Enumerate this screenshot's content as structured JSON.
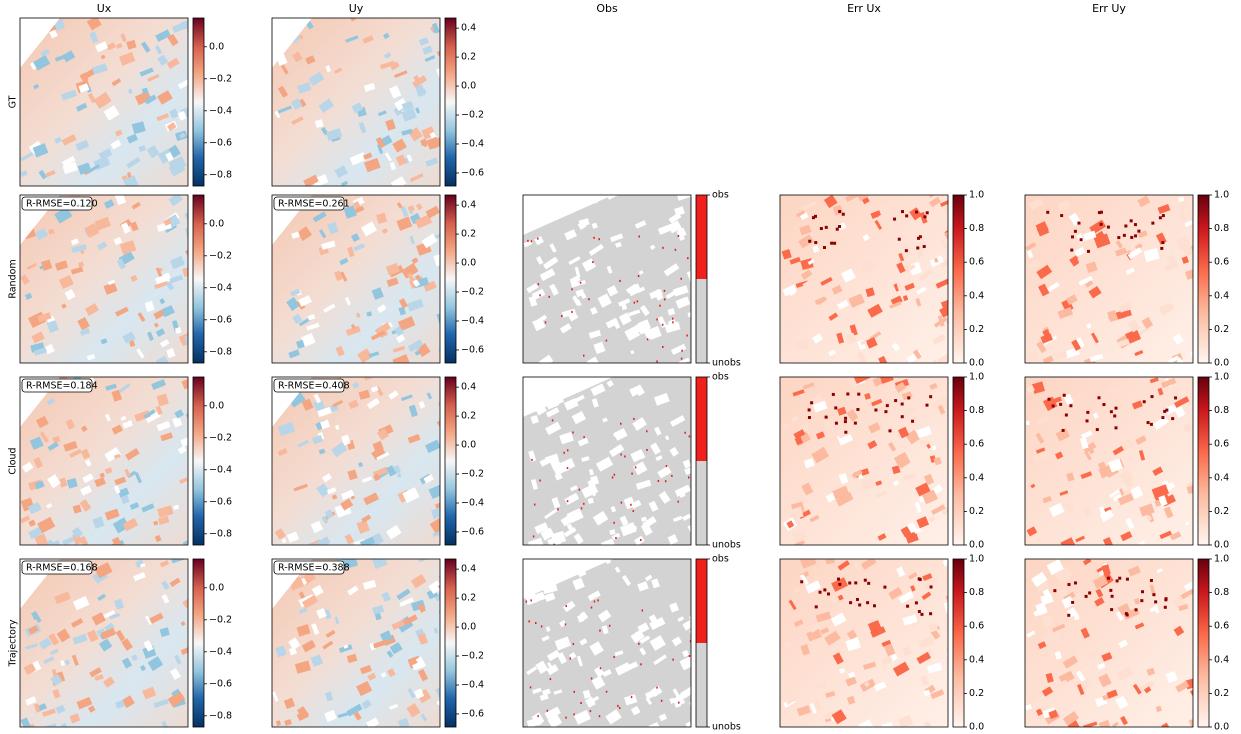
{
  "column_titles": [
    "Ux",
    "Uy",
    "Obs",
    "Err Ux",
    "Err Uy"
  ],
  "row_labels": [
    "GT",
    "Random",
    "Cloud",
    "Trajectory"
  ],
  "rmse": [
    [
      "R-RMSE=0.120",
      "R-RMSE=0.261"
    ],
    [
      "R-RMSE=0.184",
      "R-RMSE=0.408"
    ],
    [
      "R-RMSE=0.168",
      "R-RMSE=0.388"
    ]
  ],
  "colorbars": [
    {
      "lim": [
        -0.87,
        0.18
      ],
      "ticks": [
        {
          "value": 0,
          "label": "0.0"
        },
        {
          "value": -0.2,
          "label": "−0.2"
        },
        {
          "value": -0.4,
          "label": "−0.4"
        },
        {
          "value": -0.6,
          "label": "−0.6"
        },
        {
          "value": -0.8,
          "label": "−0.8"
        }
      ]
    },
    {
      "lim": [
        -0.69,
        0.47
      ],
      "ticks": [
        {
          "value": 0.4,
          "label": "0.4"
        },
        {
          "value": 0.2,
          "label": "0.2"
        },
        {
          "value": 0,
          "label": "0.0"
        },
        {
          "value": -0.2,
          "label": "−0.2"
        },
        {
          "value": -0.4,
          "label": "−0.4"
        },
        {
          "value": -0.6,
          "label": "−0.6"
        }
      ]
    },
    {
      "lim": [
        0,
        1
      ],
      "ticks": [
        {
          "value": 1,
          "label": "obs"
        },
        {
          "value": 0,
          "label": "unobs"
        }
      ]
    },
    {
      "lim": [
        0,
        1
      ],
      "ticks": [
        {
          "value": 0,
          "label": "0.0"
        },
        {
          "value": 0.2,
          "label": "0.2"
        },
        {
          "value": 0.4,
          "label": "0.4"
        },
        {
          "value": 0.6,
          "label": "0.6"
        },
        {
          "value": 0.8,
          "label": "0.8"
        },
        {
          "value": 1,
          "label": "1.0"
        }
      ]
    },
    {
      "lim": [
        0,
        1
      ],
      "ticks": [
        {
          "value": 0,
          "label": "0.0"
        },
        {
          "value": 0.2,
          "label": "0.2"
        },
        {
          "value": 0.4,
          "label": "0.4"
        },
        {
          "value": 0.6,
          "label": "0.6"
        },
        {
          "value": 0.8,
          "label": "0.8"
        },
        {
          "value": 1,
          "label": "1.0"
        }
      ]
    }
  ]
}
